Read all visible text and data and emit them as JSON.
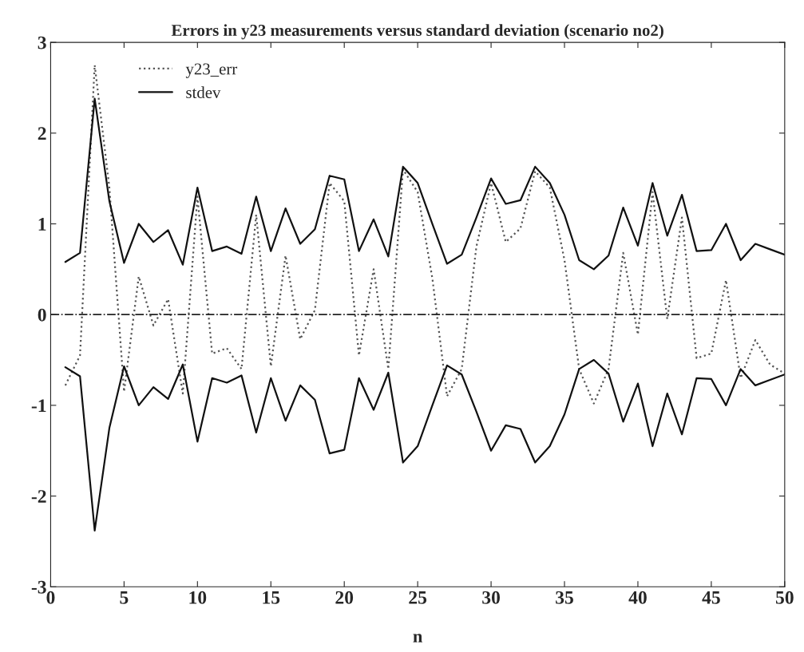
{
  "chart_data": {
    "type": "line",
    "title": "Errors in y23 measurements versus standard deviation (scenario no2)",
    "xlabel": "n",
    "x": [
      1,
      2,
      3,
      4,
      5,
      6,
      7,
      8,
      9,
      10,
      11,
      12,
      13,
      14,
      15,
      16,
      17,
      18,
      19,
      20,
      21,
      22,
      23,
      24,
      25,
      26,
      27,
      28,
      29,
      30,
      31,
      32,
      33,
      34,
      35,
      36,
      37,
      38,
      39,
      40,
      41,
      42,
      43,
      44,
      45,
      46,
      47,
      48,
      49,
      50
    ],
    "series": [
      {
        "name": "y23_err",
        "color": "#555555",
        "line_style": "dotted",
        "values": [
          -0.78,
          -0.45,
          2.75,
          1.4,
          -0.85,
          0.42,
          -0.12,
          0.17,
          -0.87,
          1.3,
          -0.43,
          -0.37,
          -0.6,
          1.1,
          -0.57,
          0.65,
          -0.27,
          0.05,
          1.45,
          1.25,
          -0.45,
          0.5,
          -0.6,
          1.6,
          1.35,
          0.4,
          -0.9,
          -0.6,
          0.75,
          1.45,
          0.8,
          0.95,
          1.58,
          1.4,
          0.6,
          -0.6,
          -0.98,
          -0.6,
          0.68,
          -0.22,
          1.35,
          -0.05,
          1.07,
          -0.48,
          -0.43,
          0.38,
          -0.7,
          -0.28,
          -0.55,
          -0.65
        ]
      },
      {
        "name": "stdev",
        "color": "#111111",
        "line_style": "solid",
        "values": [
          0.58,
          0.68,
          2.38,
          1.25,
          0.57,
          1.0,
          0.8,
          0.93,
          0.55,
          1.4,
          0.7,
          0.75,
          0.67,
          1.3,
          0.7,
          1.17,
          0.78,
          0.94,
          1.53,
          1.49,
          0.7,
          1.05,
          0.64,
          1.63,
          1.45,
          1.0,
          0.56,
          0.66,
          1.07,
          1.5,
          1.22,
          1.26,
          1.63,
          1.45,
          1.1,
          0.6,
          0.5,
          0.65,
          1.18,
          0.76,
          1.45,
          0.87,
          1.32,
          0.7,
          0.71,
          1.0,
          0.6,
          0.78,
          0.72,
          0.66
        ]
      },
      {
        "color": "#111111",
        "line_style": "solid",
        "values": [
          -0.58,
          -0.68,
          -2.38,
          -1.25,
          -0.57,
          -1.0,
          -0.8,
          -0.93,
          -0.55,
          -1.4,
          -0.7,
          -0.75,
          -0.67,
          -1.3,
          -0.7,
          -1.17,
          -0.78,
          -0.94,
          -1.53,
          -1.49,
          -0.7,
          -1.05,
          -0.64,
          -1.63,
          -1.45,
          -1.0,
          -0.56,
          -0.66,
          -1.07,
          -1.5,
          -1.22,
          -1.26,
          -1.63,
          -1.45,
          -1.1,
          -0.6,
          -0.5,
          -0.65,
          -1.18,
          -0.76,
          -1.45,
          -0.87,
          -1.32,
          -0.7,
          -0.71,
          -1.0,
          -0.6,
          -0.78,
          -0.72,
          -0.66
        ]
      }
    ],
    "ref_lines": [
      {
        "axis": "y",
        "value": 0,
        "color": "#222222",
        "line_style": "dashdot"
      }
    ],
    "xlim": [
      0,
      50
    ],
    "xticks": [
      0,
      5,
      10,
      15,
      20,
      25,
      30,
      35,
      40,
      45,
      50
    ],
    "ylim": [
      -3,
      3
    ],
    "yticks": [
      -3,
      -2,
      -1,
      0,
      1,
      2,
      3
    ],
    "grid": false,
    "legend": "top left",
    "marker": "none"
  }
}
